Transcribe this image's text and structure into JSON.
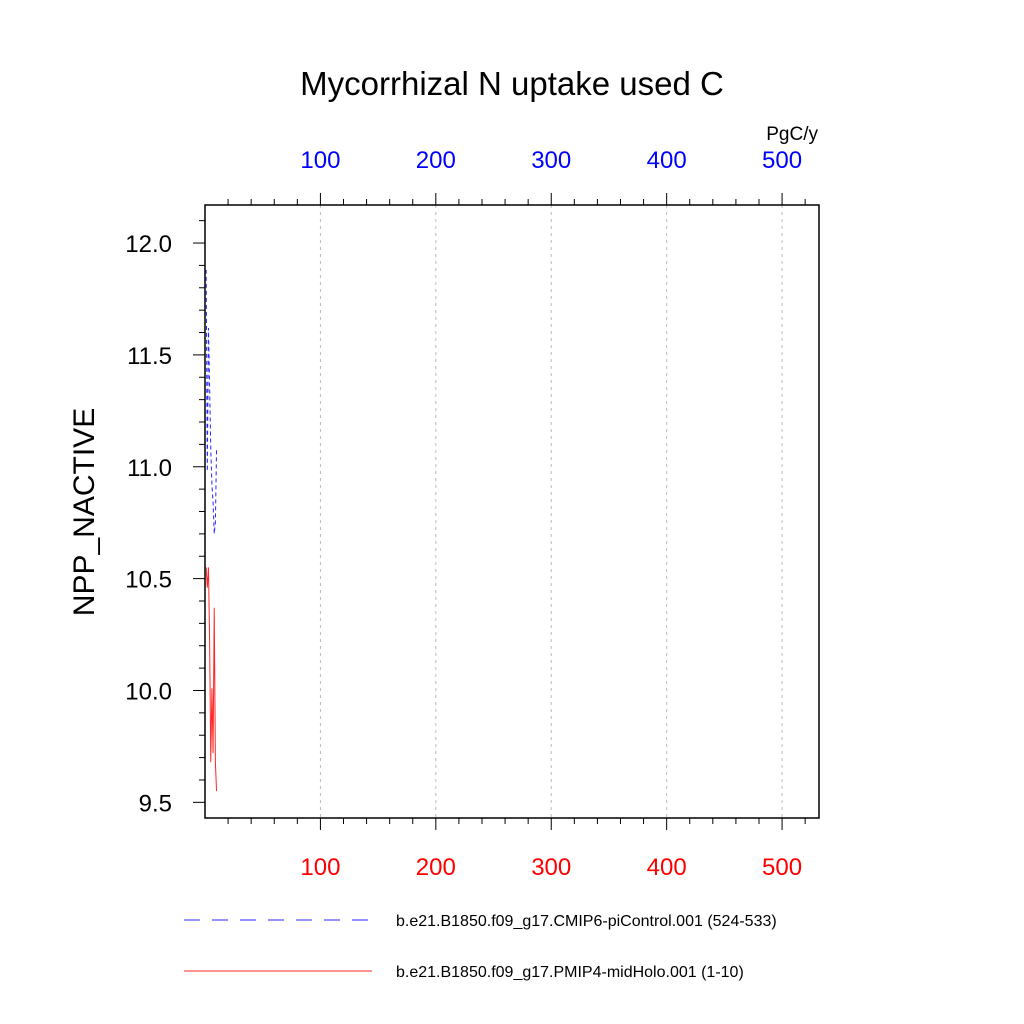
{
  "chart_data": {
    "type": "line",
    "title": "Mycorrhizal N uptake used C",
    "ylabel": "NPP_NACTIVE",
    "top_axis_unit": "PgC/y",
    "xlim": [
      0,
      532
    ],
    "ylim": [
      9.43,
      12.17
    ],
    "x_ticks": [
      100,
      200,
      300,
      400,
      500
    ],
    "y_ticks": [
      9.5,
      10.0,
      10.5,
      11.0,
      11.5,
      12.0
    ],
    "y_tick_labels": [
      "9.5",
      "10.0",
      "10.5",
      "11.0",
      "11.5",
      "12.0"
    ],
    "x_minor_step": 20,
    "y_minor_step": 0.1,
    "grid": "vertical dashed at major x ticks",
    "top_axis_color": "#0000ff",
    "bottom_axis_color": "#ff0000",
    "series": [
      {
        "name": "b.e21.B1850.f09_g17.CMIP6-piControl.001 (524-533)",
        "color": "#0000ff",
        "style": "dashed",
        "axis": "top",
        "x": [
          1,
          2,
          3,
          4,
          5,
          6,
          7,
          8,
          9,
          10
        ],
        "y": [
          11.88,
          10.98,
          11.62,
          11.36,
          11.08,
          10.92,
          10.84,
          10.7,
          10.75,
          11.08
        ]
      },
      {
        "name": "b.e21.B1850.f09_g17.PMIP4-midHolo.001 (1-10)",
        "color": "#ff0000",
        "style": "solid",
        "axis": "bottom",
        "x": [
          1,
          2,
          3,
          4,
          5,
          6,
          7,
          8,
          9,
          10
        ],
        "y": [
          10.55,
          10.46,
          10.55,
          10.22,
          9.68,
          10.01,
          9.72,
          10.37,
          9.68,
          9.55
        ]
      }
    ]
  }
}
